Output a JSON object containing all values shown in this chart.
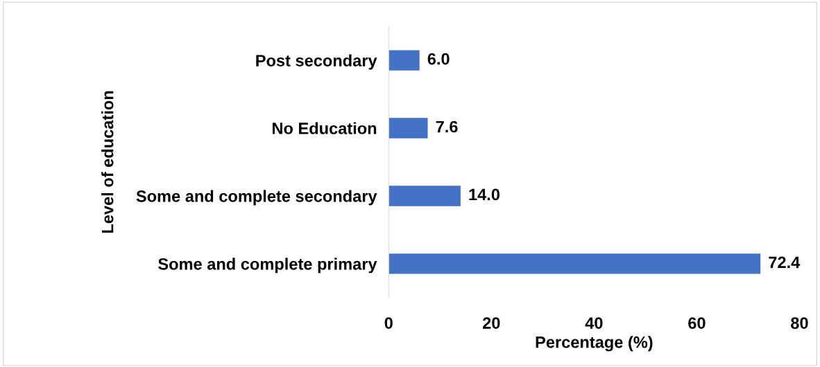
{
  "chart_data": {
    "type": "bar",
    "orientation": "horizontal",
    "categories": [
      "Post secondary",
      "No Education",
      "Some and complete secondary",
      "Some and complete primary"
    ],
    "values": [
      6.0,
      7.6,
      14.0,
      72.4
    ],
    "value_labels": [
      "6.0",
      "7.6",
      "14.0",
      "72.4"
    ],
    "color": "#4472c4",
    "xlabel": "Percentage (%)",
    "ylabel": "Level of education",
    "xlim": [
      0,
      80
    ],
    "xticks": [
      0,
      20,
      40,
      60,
      80
    ],
    "grid": false,
    "legend": false
  }
}
